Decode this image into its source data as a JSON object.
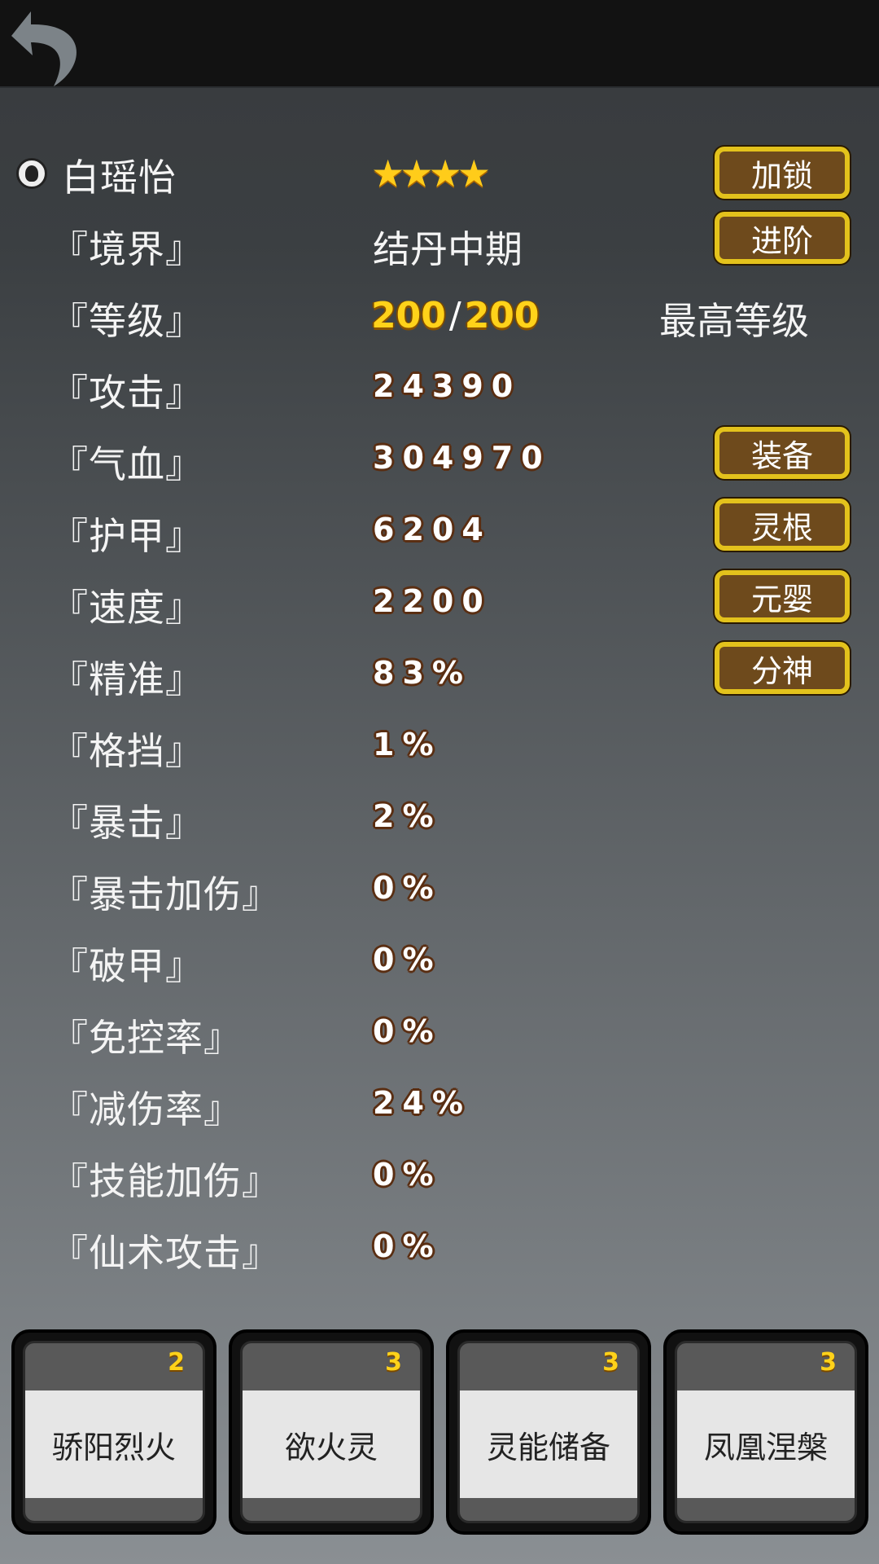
{
  "header": {
    "back_icon": "back-arrow-icon"
  },
  "character": {
    "name": "白瑶怡",
    "stars": 4,
    "star_glyphs": "★★★★",
    "lock_label": "加锁"
  },
  "realm": {
    "label": "『境界』",
    "value": "结丹中期",
    "button": "进阶"
  },
  "level": {
    "label": "『等级』",
    "current": "200",
    "separator": "/",
    "max": "200",
    "status": "最高等级"
  },
  "stats": [
    {
      "label": "『攻击』",
      "value": "24390"
    },
    {
      "label": "『气血』",
      "value": "304970",
      "button": "装备"
    },
    {
      "label": "『护甲』",
      "value": "6204",
      "button": "灵根"
    },
    {
      "label": "『速度』",
      "value": "2200",
      "button": "元婴"
    },
    {
      "label": "『精准』",
      "value": "83%",
      "button": "分神"
    },
    {
      "label": "『格挡』",
      "value": "1%"
    },
    {
      "label": "『暴击』",
      "value": "2%"
    },
    {
      "label": "『暴击加伤』",
      "value": "0%"
    },
    {
      "label": "『破甲』",
      "value": "0%"
    },
    {
      "label": "『免控率』",
      "value": "0%"
    },
    {
      "label": "『减伤率』",
      "value": "24%"
    },
    {
      "label": "『技能加伤』",
      "value": "0%"
    },
    {
      "label": "『仙术攻击』",
      "value": "0%"
    }
  ],
  "skills": [
    {
      "name": "骄阳烈火",
      "count": "2"
    },
    {
      "name": "欲火灵",
      "count": "3"
    },
    {
      "name": "灵能储备",
      "count": "3"
    },
    {
      "name": "凤凰涅槃",
      "count": "3"
    }
  ],
  "colors": {
    "button_fill": "#6e4a1c",
    "button_border": "#e3c21c",
    "gold_text": "#ffd21a"
  }
}
